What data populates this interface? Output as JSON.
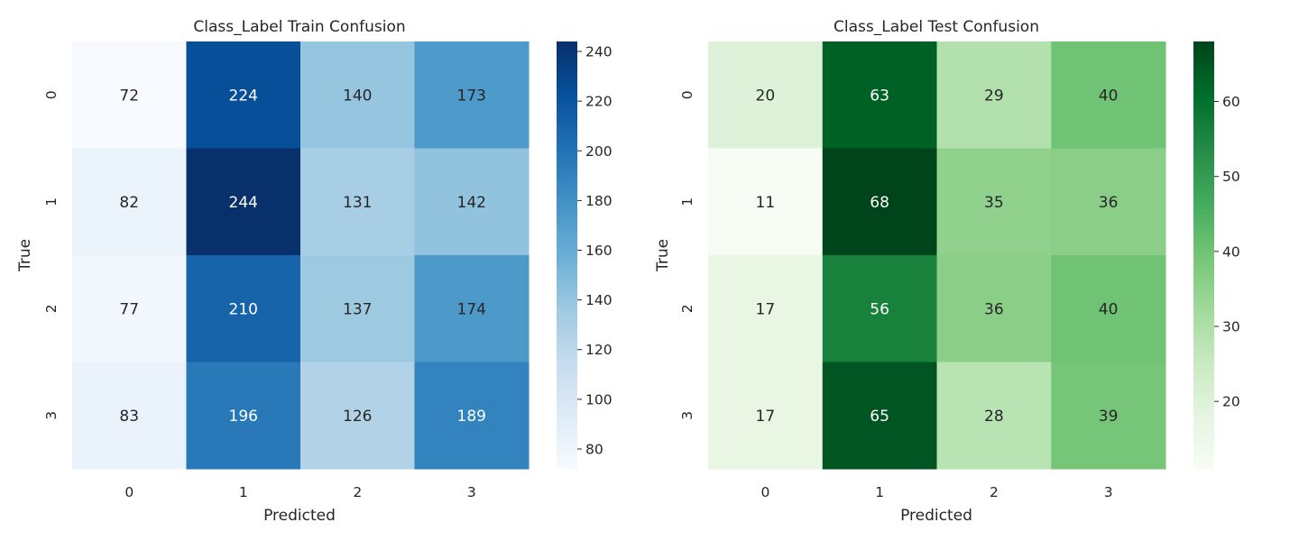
{
  "chart_data": [
    {
      "type": "heatmap",
      "title": "Class_Label Train Confusion",
      "xlabel": "Predicted",
      "ylabel": "True",
      "x_categories": [
        "0",
        "1",
        "2",
        "3"
      ],
      "y_categories": [
        "0",
        "1",
        "2",
        "3"
      ],
      "values": [
        [
          72,
          224,
          140,
          173
        ],
        [
          82,
          244,
          131,
          142
        ],
        [
          77,
          210,
          137,
          174
        ],
        [
          83,
          196,
          126,
          189
        ]
      ],
      "colormap": "Blues",
      "colorbar": {
        "min": 72,
        "max": 244,
        "ticks": [
          80,
          100,
          120,
          140,
          160,
          180,
          200,
          220,
          240
        ]
      },
      "colors": {
        "low": "#f7fbff",
        "high": "#08306b"
      }
    },
    {
      "type": "heatmap",
      "title": "Class_Label Test Confusion",
      "xlabel": "Predicted",
      "ylabel": "True",
      "x_categories": [
        "0",
        "1",
        "2",
        "3"
      ],
      "y_categories": [
        "0",
        "1",
        "2",
        "3"
      ],
      "values": [
        [
          20,
          63,
          29,
          40
        ],
        [
          11,
          68,
          35,
          36
        ],
        [
          17,
          56,
          36,
          40
        ],
        [
          17,
          65,
          28,
          39
        ]
      ],
      "colormap": "Greens",
      "colorbar": {
        "min": 11,
        "max": 68,
        "ticks": [
          20,
          30,
          40,
          50,
          60
        ]
      },
      "colors": {
        "low": "#f7fcf5",
        "high": "#00441b"
      }
    }
  ]
}
